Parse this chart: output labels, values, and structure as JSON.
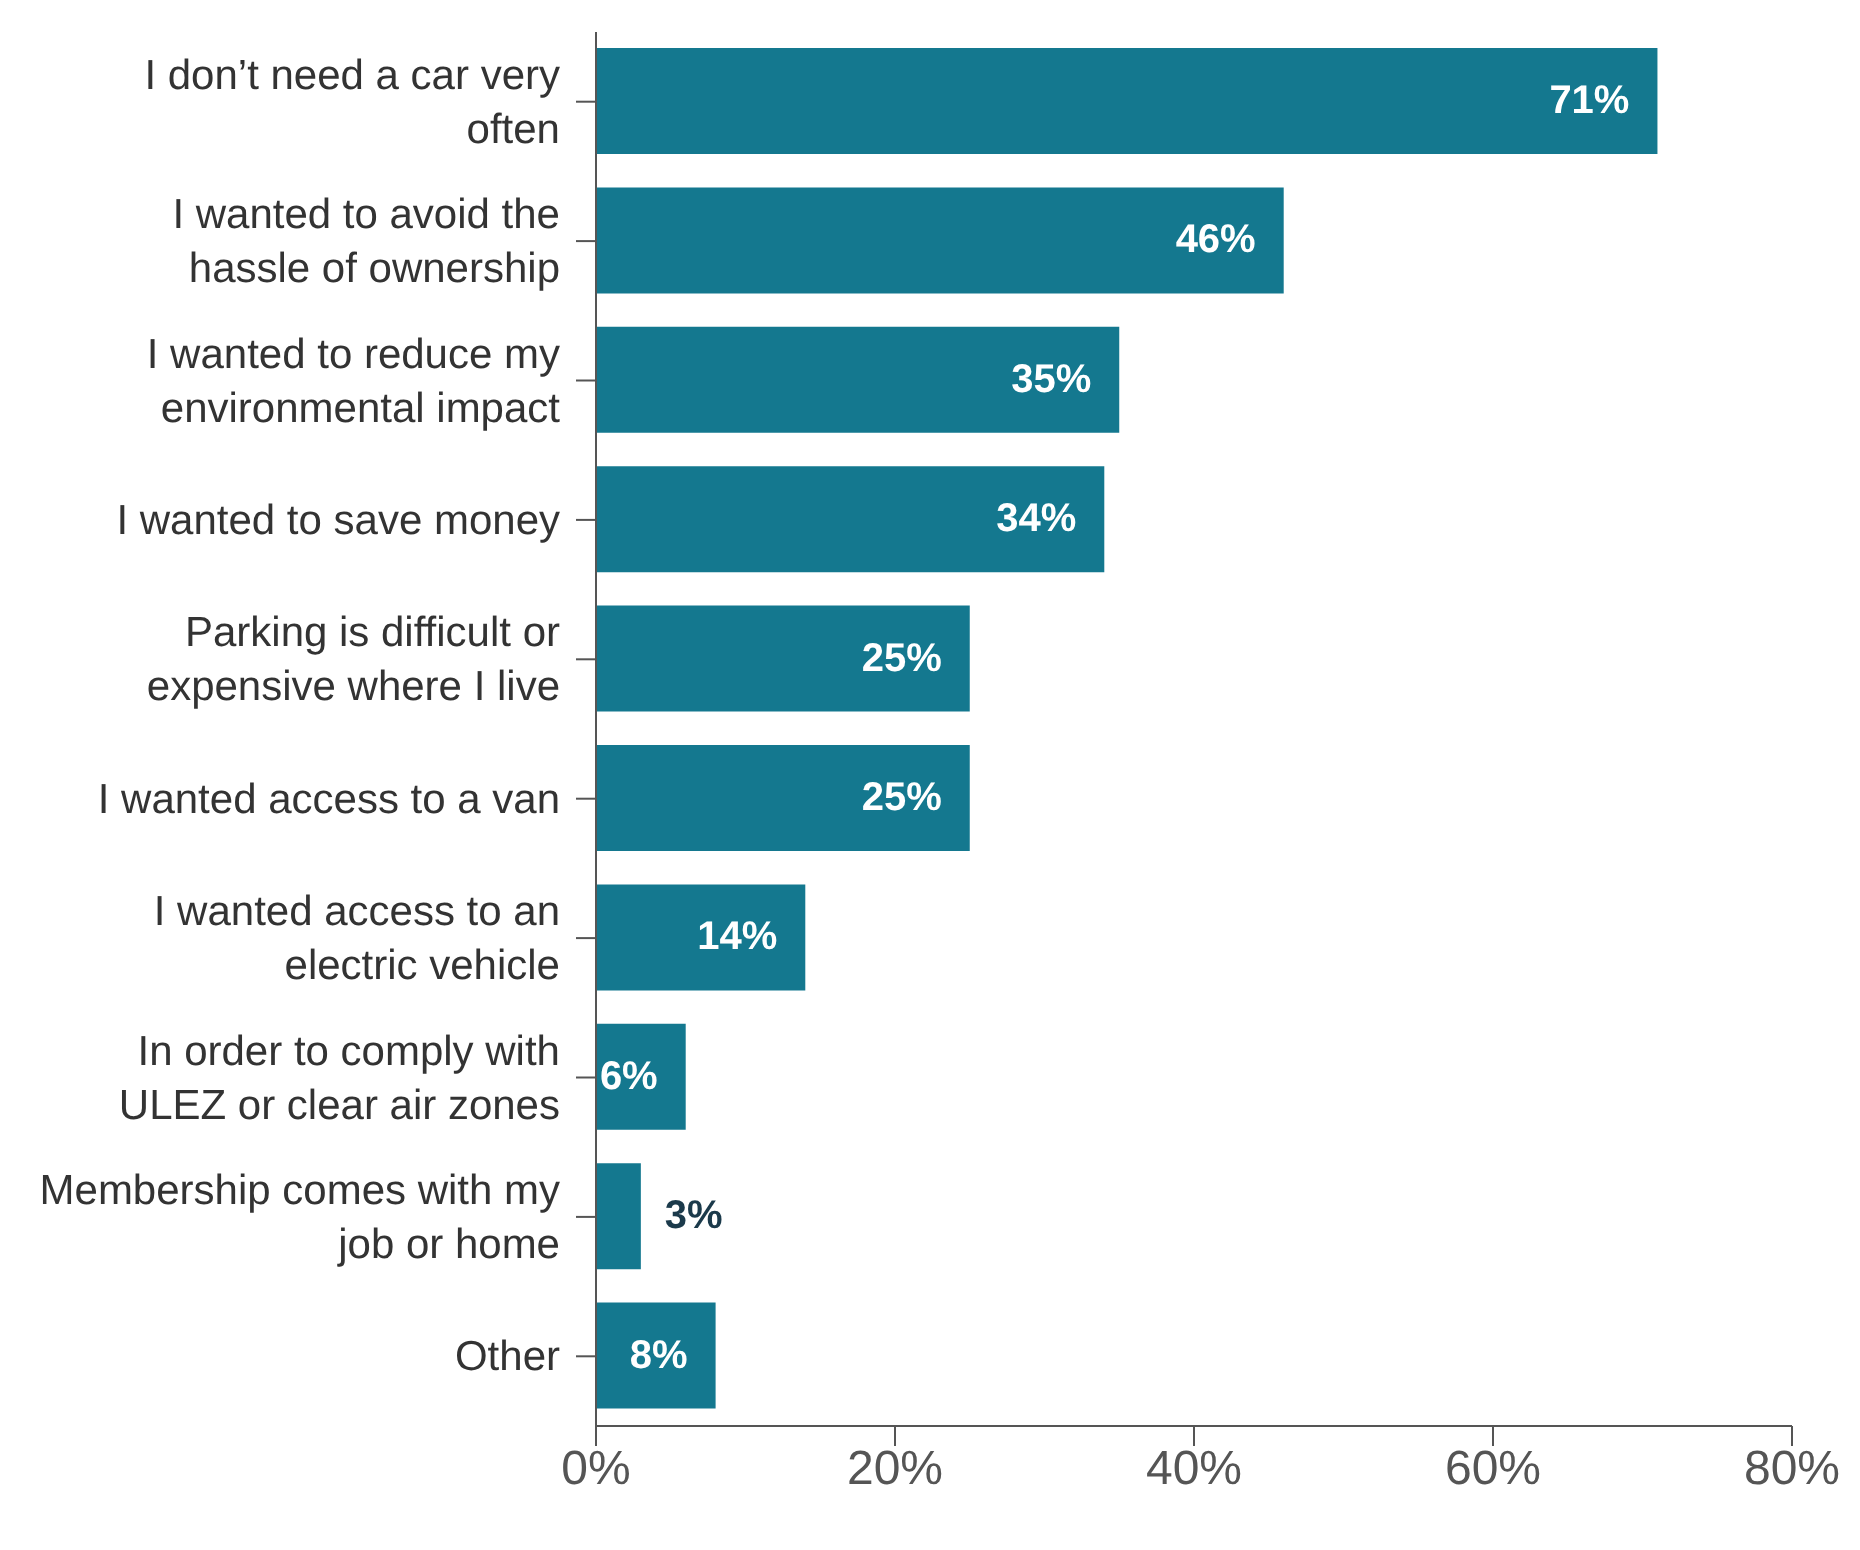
{
  "chart_data": {
    "type": "bar",
    "orientation": "horizontal",
    "categories": [
      "I don’t need a car very often",
      "I wanted to avoid the hassle of ownership",
      "I wanted to reduce my environmental impact",
      "I wanted to save money",
      "Parking is difficult or expensive where I live",
      "I wanted access to a van",
      "I wanted access to an electric vehicle",
      "In order to comply with ULEZ or clear air zones",
      "Membership comes with my job or home",
      "Other"
    ],
    "values": [
      71,
      46,
      35,
      34,
      25,
      25,
      14,
      6,
      3,
      8
    ],
    "value_labels": [
      "71%",
      "46%",
      "35%",
      "34%",
      "25%",
      "25%",
      "14%",
      "6%",
      "3%",
      "8%"
    ],
    "color": "#14788f",
    "xlim": [
      0,
      80
    ],
    "xticks": [
      {
        "value": 0,
        "label": "0%"
      },
      {
        "value": 20,
        "label": "20%"
      },
      {
        "value": 40,
        "label": "40%"
      },
      {
        "value": 60,
        "label": "60%"
      },
      {
        "value": 80,
        "label": "80%"
      }
    ],
    "grid": false,
    "legend": false
  }
}
